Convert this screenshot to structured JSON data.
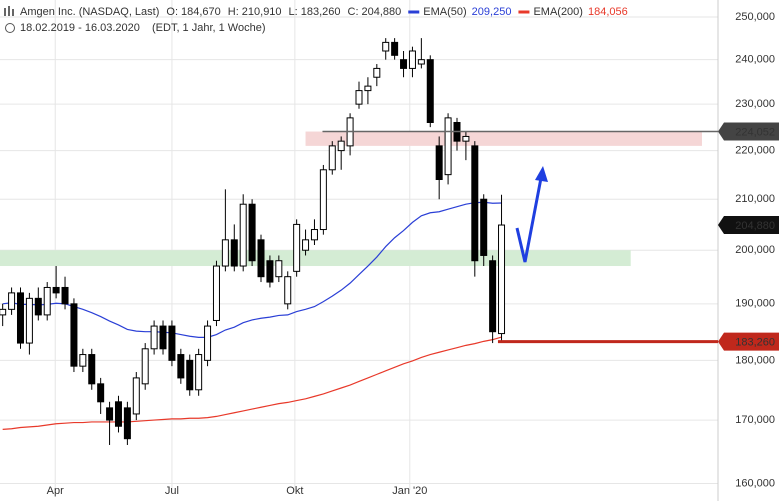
{
  "chart_data": {
    "type": "candlestick",
    "title": "Amgen Inc. (NASDAQ, Last)",
    "quote": [
      {
        "name": "O:",
        "value": 184670,
        "label": "184,670"
      },
      {
        "name": "H:",
        "value": 210910,
        "label": "210,910"
      },
      {
        "name": "L:",
        "value": 183260,
        "label": "183,260"
      },
      {
        "name": "C:",
        "value": 204880,
        "label": "204,880"
      }
    ],
    "date_range": "18.02.2019 - 16.03.2020",
    "subtitle": "(EDT, 1 Jahr, 1 Woche)",
    "up_color": "#ffffff",
    "down_color": "#000000",
    "open": [
      188000,
      189000,
      192000,
      183000,
      191000,
      188000,
      193000,
      193000,
      190000,
      179000,
      181000,
      176000,
      172000,
      173000,
      172000,
      171000,
      176000,
      182000,
      186000,
      186000,
      181000,
      180000,
      175000,
      180000,
      187000,
      197000,
      202000,
      197000,
      209000,
      202000,
      198000,
      195000,
      190000,
      196000,
      200000,
      202000,
      204000,
      216000,
      220000,
      221000,
      230000,
      233000,
      236000,
      242000,
      244000,
      240000,
      238000,
      239000,
      240000,
      221000,
      215000,
      226000,
      222000,
      221000,
      210000,
      198000,
      184670
    ],
    "high": [
      190000,
      193000,
      193000,
      192000,
      193000,
      194000,
      197000,
      195000,
      191000,
      182000,
      182000,
      177000,
      173000,
      174000,
      173000,
      178000,
      183000,
      187000,
      187000,
      187000,
      182000,
      181000,
      182000,
      187000,
      198000,
      212000,
      205000,
      211000,
      210000,
      203000,
      199000,
      199000,
      196000,
      206000,
      204000,
      206000,
      217000,
      222000,
      223000,
      228000,
      235000,
      236000,
      239000,
      245000,
      245000,
      242000,
      243000,
      245000,
      241000,
      223000,
      228000,
      227000,
      224000,
      222000,
      211000,
      199000,
      210910
    ],
    "low": [
      186000,
      188000,
      182000,
      181000,
      187000,
      187000,
      191000,
      189000,
      178000,
      178000,
      175000,
      171000,
      166000,
      168000,
      166000,
      170000,
      175000,
      181000,
      181000,
      179000,
      176000,
      174000,
      174000,
      179000,
      186000,
      196000,
      196000,
      196000,
      197000,
      194000,
      193000,
      194000,
      189000,
      195000,
      199000,
      201000,
      203000,
      215000,
      216000,
      219000,
      229000,
      230000,
      234000,
      240000,
      240000,
      236000,
      236000,
      238000,
      225000,
      210000,
      213000,
      220000,
      218000,
      195000,
      197000,
      183000,
      183260
    ],
    "close": [
      189000,
      192000,
      183000,
      191000,
      188000,
      193000,
      192000,
      190000,
      179000,
      181000,
      176000,
      173000,
      170000,
      169000,
      167000,
      177000,
      182000,
      186000,
      182000,
      180000,
      177000,
      175000,
      181000,
      186000,
      197000,
      202000,
      197000,
      209000,
      198000,
      195000,
      194000,
      198000,
      195000,
      205000,
      202000,
      204000,
      216000,
      221000,
      222000,
      227000,
      233000,
      234000,
      238000,
      244000,
      241000,
      238000,
      242000,
      240000,
      226000,
      214000,
      227000,
      222000,
      223000,
      198000,
      199000,
      185000,
      204880
    ],
    "series": [
      {
        "name": "EMA(50)",
        "value_label": "209,250",
        "color": "#2a3fd6",
        "values": [
          190000,
          190200,
          189900,
          189900,
          189800,
          189900,
          190100,
          190000,
          189500,
          189000,
          188400,
          187700,
          186900,
          186200,
          185400,
          185100,
          185000,
          185000,
          184900,
          184800,
          184500,
          184200,
          184000,
          184000,
          184500,
          185300,
          185800,
          186600,
          187100,
          187400,
          187600,
          187900,
          188000,
          188600,
          189000,
          189500,
          190400,
          191400,
          192500,
          193800,
          195400,
          197000,
          198700,
          200700,
          202400,
          203800,
          205400,
          206700,
          207300,
          207500,
          208000,
          208500,
          209000,
          209300,
          209400,
          209200,
          209250
        ]
      },
      {
        "name": "EMA(200)",
        "value_label": "184,056",
        "color": "#e8392a",
        "values": [
          168500,
          168600,
          168800,
          168900,
          169000,
          169200,
          169400,
          169500,
          169600,
          169600,
          169700,
          169700,
          169700,
          169700,
          169700,
          169800,
          169900,
          170000,
          170100,
          170200,
          170200,
          170300,
          170300,
          170400,
          170600,
          170900,
          171200,
          171500,
          171800,
          172100,
          172400,
          172700,
          172900,
          173200,
          173500,
          173900,
          174300,
          174800,
          175300,
          175800,
          176400,
          177000,
          177600,
          178200,
          178800,
          179400,
          179900,
          180500,
          181000,
          181400,
          181800,
          182200,
          182600,
          182900,
          183300,
          183600,
          184056
        ]
      }
    ],
    "zones": [
      {
        "ylim": [
          197000,
          200000
        ],
        "xlim": [
          -0.3,
          70.5
        ],
        "color": "#d4ecd4"
      },
      {
        "ylim": [
          221000,
          224052
        ],
        "xlim": [
          34,
          78.5
        ],
        "color": "#f5d6d6"
      }
    ],
    "lines": [
      {
        "value": 224052,
        "xlim": [
          35.9,
          80.3
        ],
        "color": "#666666",
        "width": 1.5
      },
      {
        "value": 183260,
        "xlim": [
          55.6,
          80.3
        ],
        "color": "#c0281c",
        "width": 3
      }
    ],
    "markers": [
      {
        "value": 224052,
        "label": "224,052",
        "color": "#444444"
      },
      {
        "value": 204880,
        "label": "204,880",
        "color": "#111111"
      },
      {
        "value": 183260,
        "label": "183,260",
        "color": "#c0281c"
      }
    ],
    "log_scale": true,
    "ylim": [
      159000,
      254100
    ],
    "yticks": [
      {
        "value": 160000,
        "label": "160,000"
      },
      {
        "value": 170000,
        "label": "170,000"
      },
      {
        "value": 180000,
        "label": "180,000"
      },
      {
        "value": 190000,
        "label": "190,000"
      },
      {
        "value": 200000,
        "label": "200,000"
      },
      {
        "value": 210000,
        "label": "210,000"
      },
      {
        "value": 220000,
        "label": "220,000"
      },
      {
        "value": 230000,
        "label": "230,000"
      },
      {
        "value": 240000,
        "label": "240,000"
      },
      {
        "value": 250000,
        "label": "250,000"
      }
    ],
    "xlim": [
      -0.3,
      80.3
    ],
    "xticks": [
      {
        "value": 5.9,
        "label": "Apr"
      },
      {
        "value": 19,
        "label": "Jul"
      },
      {
        "value": 32.8,
        "label": "Okt"
      },
      {
        "value": 45.7,
        "label": "Jan '20"
      }
    ],
    "grid": true
  }
}
